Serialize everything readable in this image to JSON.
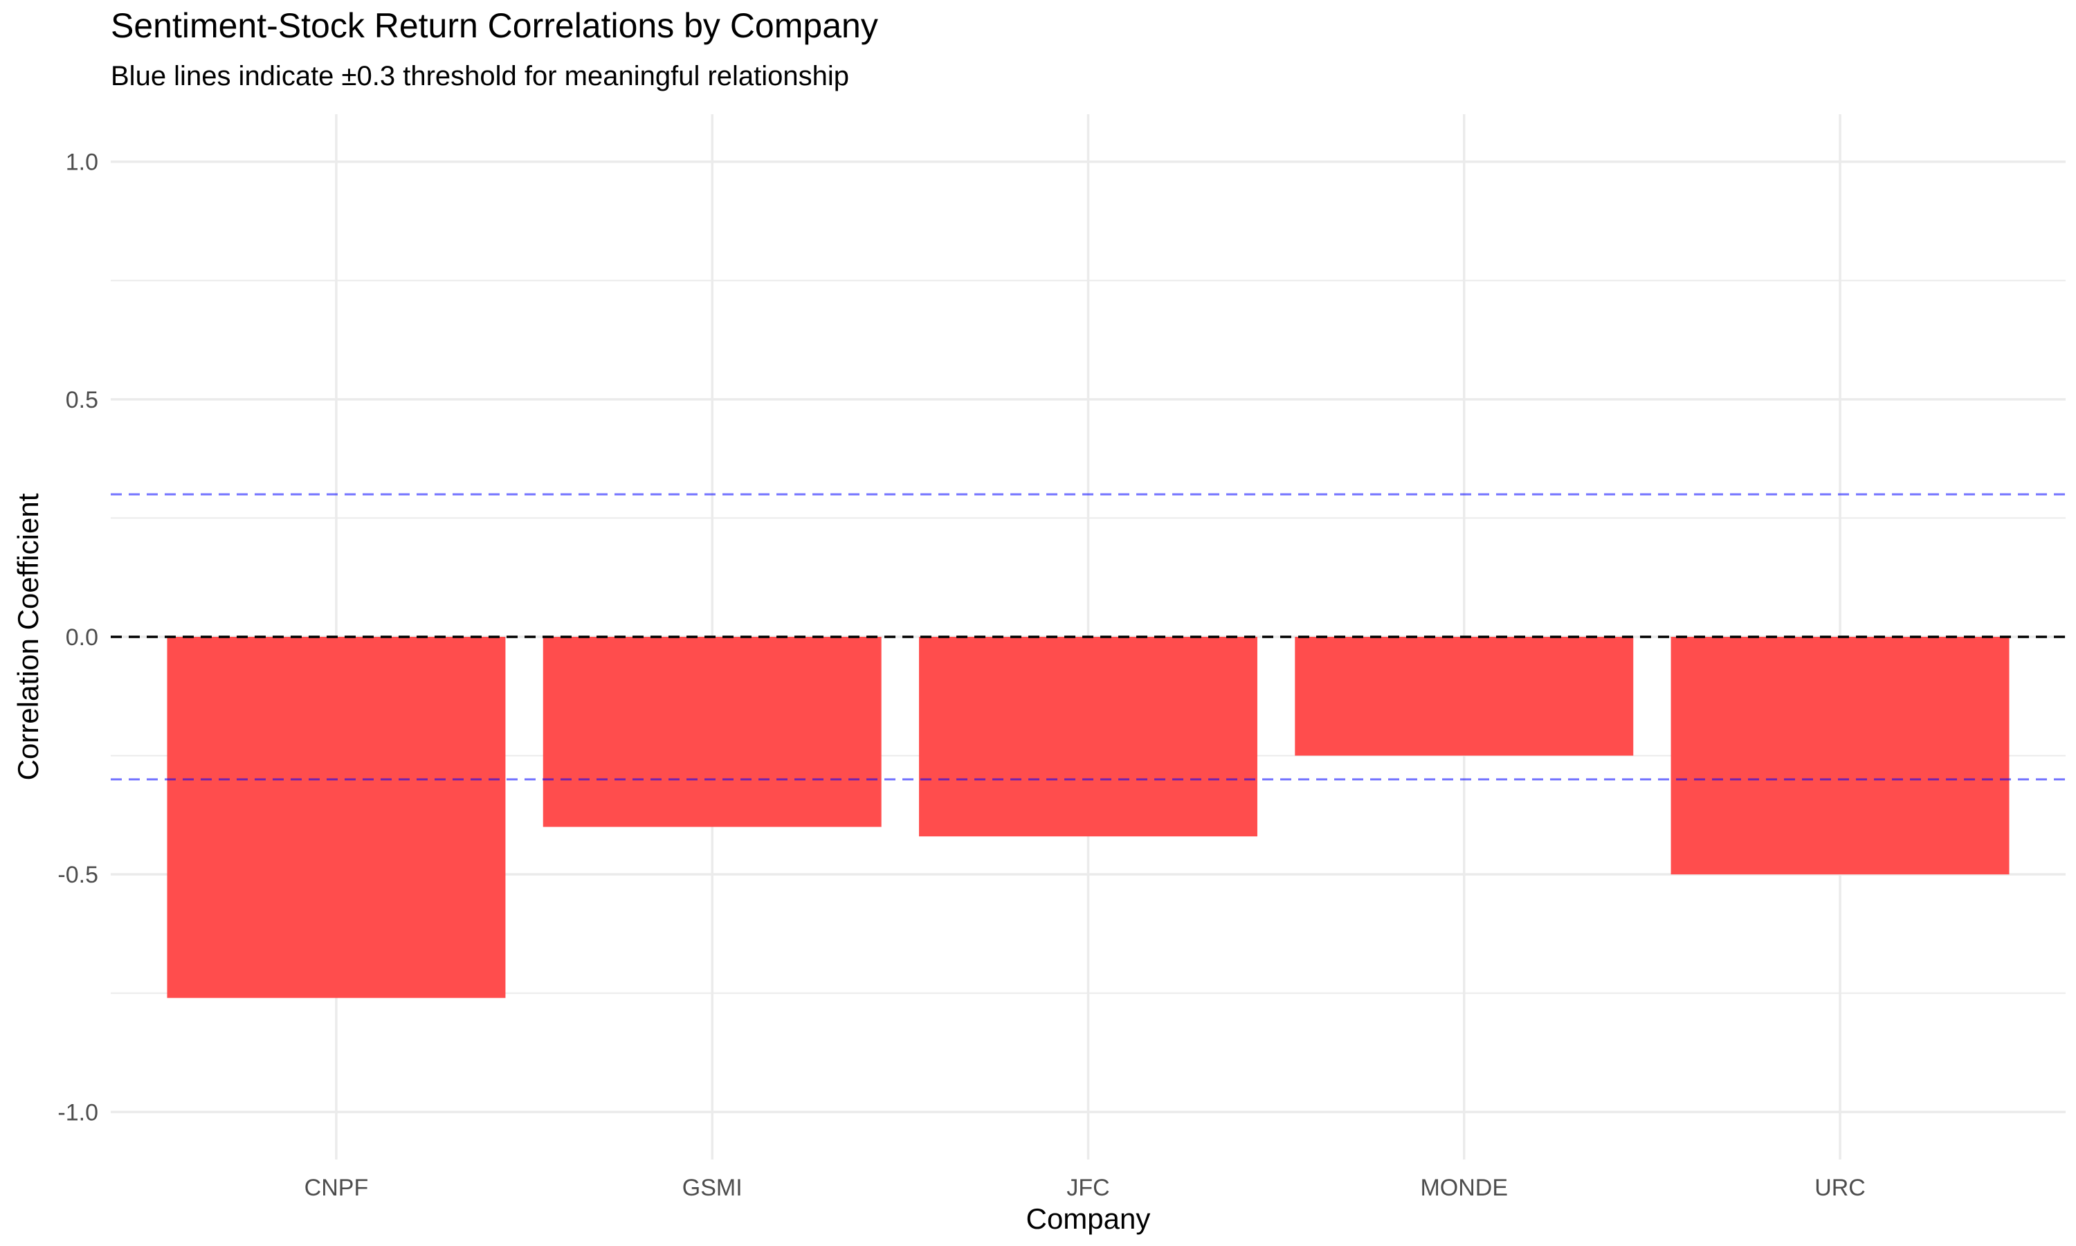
{
  "chart_data": {
    "type": "bar",
    "title": "Sentiment-Stock Return Correlations by Company",
    "subtitle": "Blue lines indicate ±0.3 threshold for meaningful relationship",
    "xlabel": "Company",
    "ylabel": "Correlation Coefficient",
    "categories": [
      "CNPF",
      "GSMI",
      "JFC",
      "MONDE",
      "URC"
    ],
    "values": [
      -0.76,
      -0.4,
      -0.42,
      -0.25,
      -0.5
    ],
    "ylim": [
      -1.0,
      1.0
    ],
    "yticks": [
      -1.0,
      -0.5,
      0.0,
      0.5,
      1.0
    ],
    "ytick_labels": [
      "-1.0",
      "-0.5",
      "0.0",
      "0.5",
      "1.0"
    ],
    "reference_lines": [
      {
        "y": 0.3,
        "color": "#0000ff",
        "style": "dashed"
      },
      {
        "y": -0.3,
        "color": "#0000ff",
        "style": "dashed"
      },
      {
        "y": 0.0,
        "color": "#000000",
        "style": "dashed"
      }
    ],
    "grid": true,
    "legend": "none",
    "colors": {
      "bar": "#ff4d4d",
      "grid": "#ebebeb",
      "threshold": "#0000ff",
      "zero": "#000000"
    }
  }
}
